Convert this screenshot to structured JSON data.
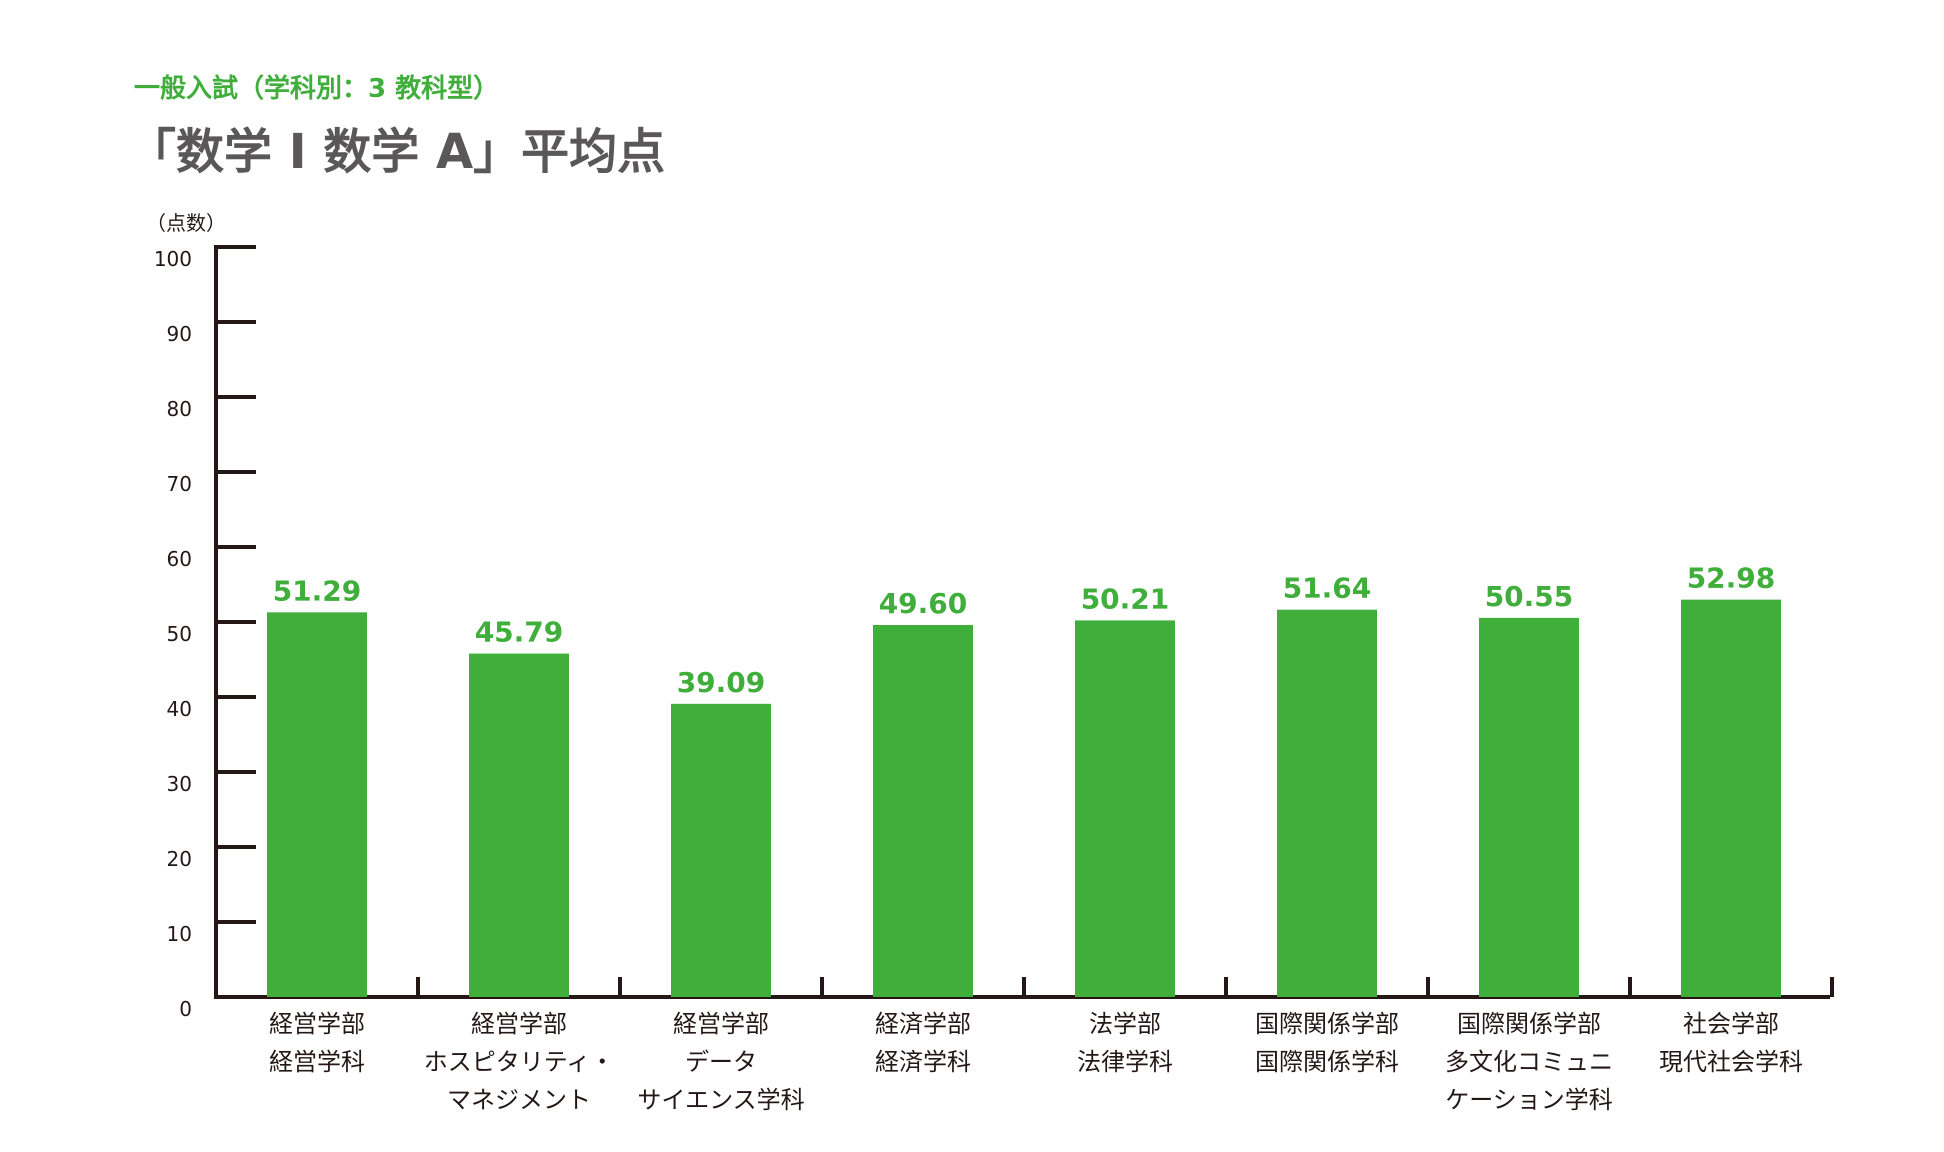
{
  "subtitle": "一般入試（学科別：3 教科型）",
  "title": "「数学 I 数学 A」平均点",
  "colors": {
    "bar": "#3fae3a",
    "value_text": "#3fae3a",
    "subtitle_text": "#3fae3a",
    "title_text": "#595757",
    "axis": "#231815"
  },
  "chart_data": {
    "type": "bar",
    "title": "「数学 I 数学 A」平均点",
    "subtitle": "一般入試（学科別：3 教科型）",
    "ylabel": "（点数）",
    "xlabel": "",
    "ylim": [
      0,
      100
    ],
    "yticks": [
      0,
      10,
      20,
      30,
      40,
      50,
      60,
      70,
      80,
      90,
      100
    ],
    "grid": false,
    "categories": [
      [
        "経営学部",
        "経営学科"
      ],
      [
        "経営学部",
        "ホスピタリティ・",
        "マネジメント"
      ],
      [
        "経営学部",
        "データ",
        "サイエンス学科"
      ],
      [
        "経済学部",
        "経済学科"
      ],
      [
        "法学部",
        "法律学科"
      ],
      [
        "国際関係学部",
        "国際関係学科"
      ],
      [
        "国際関係学部",
        "多文化コミュニ",
        "ケーション学科"
      ],
      [
        "社会学部",
        "現代社会学科"
      ]
    ],
    "values": [
      51.29,
      45.79,
      39.09,
      49.6,
      50.21,
      51.64,
      50.55,
      52.98
    ],
    "value_labels": [
      "51.29",
      "45.79",
      "39.09",
      "49.60",
      "50.21",
      "51.64",
      "50.55",
      "52.98"
    ]
  }
}
